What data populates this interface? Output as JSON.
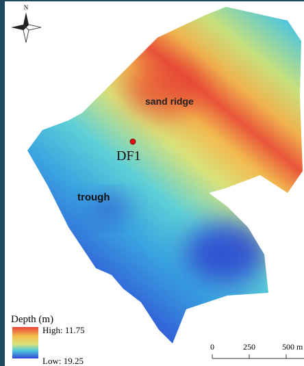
{
  "map": {
    "compass_label": "N",
    "labels": {
      "ridge": "sand ridge",
      "station": "DF1",
      "trough": "trough"
    },
    "legend": {
      "title": "Depth (m)",
      "high": "High: 11.75",
      "low": "Low: 19.25"
    },
    "scale_bar": [
      "0",
      "250",
      "500 m"
    ]
  }
}
